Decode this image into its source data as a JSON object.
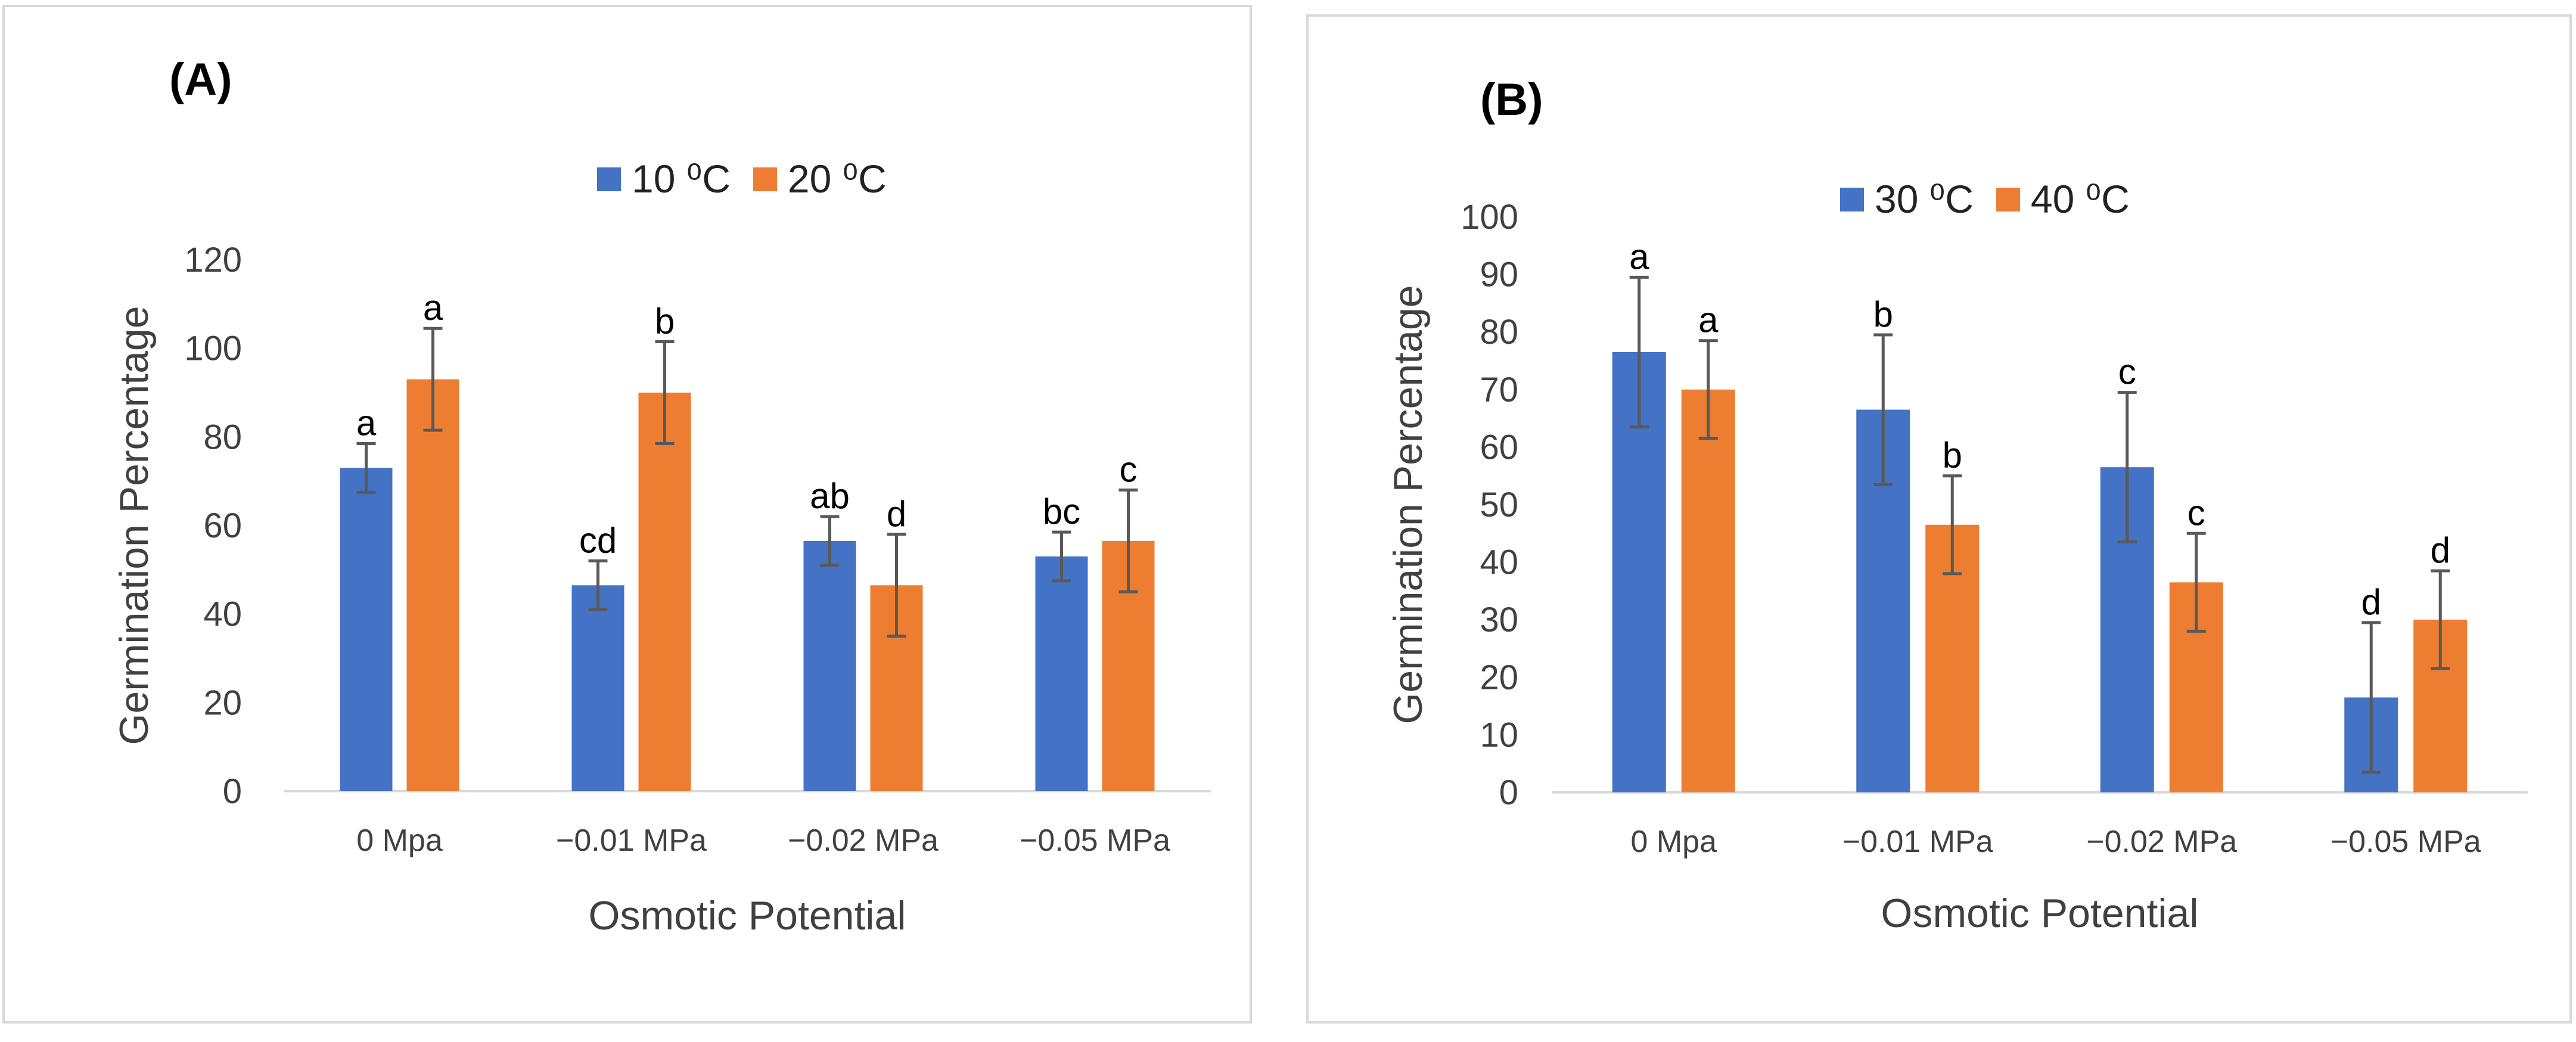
{
  "colors": {
    "series1": "#4472c4",
    "series2": "#ed7d31",
    "axis": "#d9d9d9",
    "errorbar": "#595959",
    "text": "#404040"
  },
  "chart_data": [
    {
      "type": "bar",
      "panel_label": "(A)",
      "xlabel": "Osmotic Potential",
      "ylabel": "Germination Percentage",
      "categories": [
        "0 Mpa",
        "−0.01 MPa",
        "−0.02 MPa",
        "−0.05 MPa"
      ],
      "ylim": [
        0,
        120
      ],
      "yticks": [
        0,
        20,
        40,
        60,
        80,
        100,
        120
      ],
      "series": [
        {
          "name": "10 ⁰C",
          "values": [
            73,
            46.5,
            56.5,
            53
          ],
          "errors": [
            5.5,
            5.5,
            5.5,
            5.5
          ],
          "letters": [
            "a",
            "cd",
            "ab",
            "bc"
          ]
        },
        {
          "name": "20 ⁰C",
          "values": [
            93,
            90,
            46.5,
            56.5
          ],
          "errors": [
            11.5,
            11.5,
            11.5,
            11.5
          ],
          "letters": [
            "a",
            "b",
            "d",
            "c"
          ]
        }
      ]
    },
    {
      "type": "bar",
      "panel_label": "(B)",
      "xlabel": "Osmotic Potential",
      "ylabel": "Germination Percentage",
      "categories": [
        "0 Mpa",
        "−0.01 MPa",
        "−0.02 MPa",
        "−0.05 MPa"
      ],
      "ylim": [
        0,
        100
      ],
      "yticks": [
        0,
        10,
        20,
        30,
        40,
        50,
        60,
        70,
        80,
        90,
        100
      ],
      "series": [
        {
          "name": "30 ⁰C",
          "values": [
            76.5,
            66.5,
            56.5,
            16.5
          ],
          "errors": [
            13,
            13,
            13,
            13
          ],
          "letters": [
            "a",
            "b",
            "c",
            "d"
          ]
        },
        {
          "name": "40 ⁰C",
          "values": [
            70,
            46.5,
            36.5,
            30
          ],
          "errors": [
            8.5,
            8.5,
            8.5,
            8.5
          ],
          "letters": [
            "a",
            "b",
            "c",
            "d"
          ]
        }
      ]
    }
  ]
}
